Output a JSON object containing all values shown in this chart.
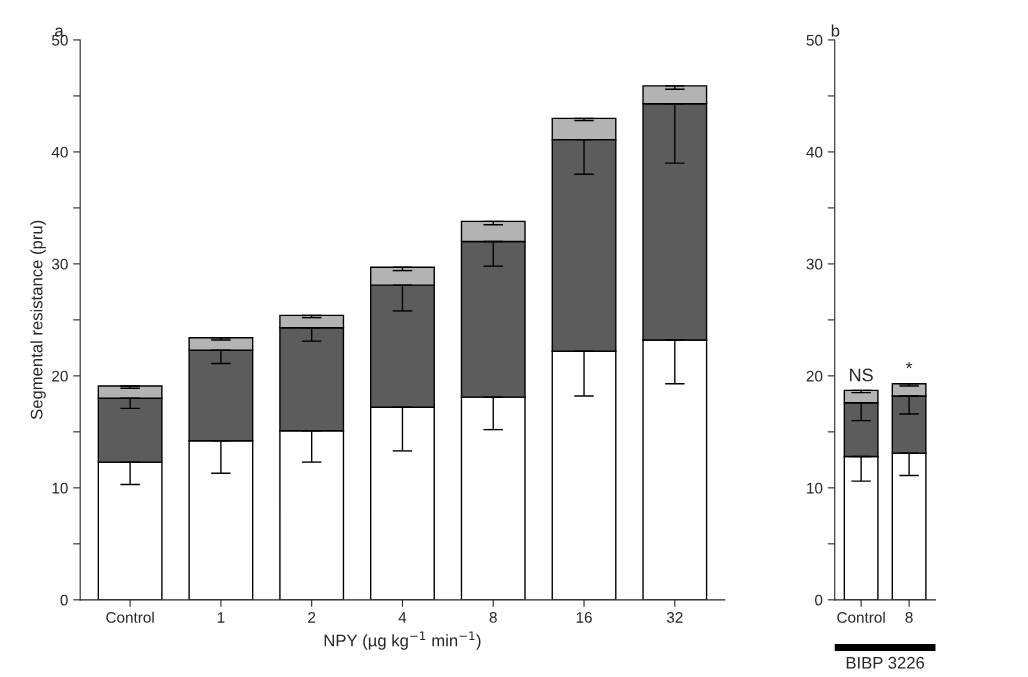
{
  "chart_data": [
    {
      "type": "bar",
      "title": "a",
      "xlabel": "NPY (µg kg$^{−1}$ min$^{−1}$)",
      "ylabel": "Segmental resistance (pru)",
      "stacked": true,
      "categories": [
        "Control",
        "1",
        "2",
        "4",
        "8",
        "16",
        "32"
      ],
      "series": [
        {
          "color": "#ffffff",
          "values": [
            12.3,
            14.2,
            15.1,
            17.2,
            18.1,
            22.2,
            23.2
          ],
          "errors": [
            [
              10.3,
              12.3
            ],
            [
              11.3,
              14.2
            ],
            [
              12.3,
              15.1
            ],
            [
              13.3,
              17.2
            ],
            [
              15.2,
              18.1
            ],
            [
              18.2,
              22.2
            ],
            [
              19.3,
              23.2
            ]
          ]
        },
        {
          "color": "#5c5c5c",
          "values": [
            5.7,
            8.1,
            9.2,
            10.9,
            13.9,
            18.9,
            21.1
          ],
          "errors": [
            [
              17.1,
              18.0
            ],
            [
              21.1,
              22.3
            ],
            [
              23.1,
              24.3
            ],
            [
              25.8,
              28.1
            ],
            [
              29.8,
              32.0
            ],
            [
              38.0,
              41.1
            ],
            [
              39.0,
              44.3
            ]
          ]
        },
        {
          "color": "#b3b3b3",
          "values": [
            1.1,
            1.1,
            1.1,
            1.6,
            1.8,
            1.9,
            1.6
          ],
          "errors": [
            [
              18.9,
              19.1
            ],
            [
              23.2,
              23.4
            ],
            [
              25.2,
              25.4
            ],
            [
              29.4,
              29.7
            ],
            [
              33.5,
              33.8
            ],
            [
              42.8,
              43.0
            ],
            [
              45.6,
              45.9
            ]
          ]
        }
      ],
      "ylim": [
        0,
        50
      ],
      "yticks": [
        0,
        {
          "value": 5,
          "label": null
        },
        10,
        {
          "value": 15,
          "label": null
        },
        20,
        {
          "value": 25,
          "label": null
        },
        30,
        {
          "value": 35,
          "label": null
        },
        40,
        {
          "value": 45,
          "label": null
        },
        50
      ],
      "grid": false
    },
    {
      "type": "bar",
      "title": "b",
      "xlabel": "BIBP 3226",
      "stacked": true,
      "categories": [
        "Control",
        "8"
      ],
      "series": [
        {
          "color": "#ffffff",
          "values": [
            12.8,
            13.1
          ],
          "errors": [
            [
              10.6,
              12.8
            ],
            [
              11.1,
              13.1
            ]
          ]
        },
        {
          "color": "#5c5c5c",
          "values": [
            4.8,
            5.1
          ],
          "errors": [
            [
              16.0,
              17.6
            ],
            [
              16.6,
              18.2
            ]
          ]
        },
        {
          "color": "#b3b3b3",
          "values": [
            1.1,
            1.1
          ],
          "errors": [
            [
              18.5,
              18.7
            ],
            [
              19.1,
              19.3
            ]
          ]
        }
      ],
      "annotations": [
        {
          "text": "NS",
          "x": "Control",
          "y": 18.7
        },
        {
          "text": "*",
          "x": "8",
          "y": 19.3
        }
      ],
      "ylim": [
        0,
        50
      ],
      "yticks": [
        0,
        {
          "value": 5,
          "label": null
        },
        10,
        {
          "value": 15,
          "label": null
        },
        20,
        {
          "value": 25,
          "label": null
        },
        30,
        {
          "value": 35,
          "label": null
        },
        40,
        {
          "value": 45,
          "label": null
        },
        50
      ],
      "grid": false
    }
  ]
}
